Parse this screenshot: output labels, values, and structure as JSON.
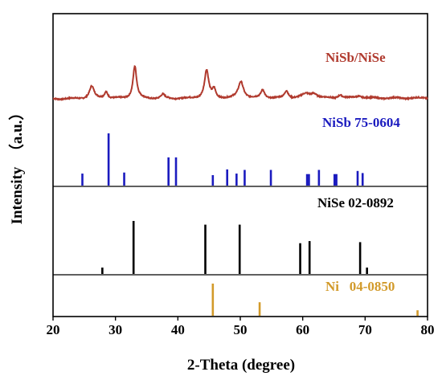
{
  "chart_data": {
    "type": "line",
    "xlabel": "2-Theta (degree)",
    "ylabel": "Intensity  （a.u.）",
    "xlim": [
      20,
      80
    ],
    "xticks": [
      "20",
      "30",
      "40",
      "50",
      "60",
      "70",
      "80"
    ],
    "grid": false,
    "panels": [
      {
        "label": "NiSb/NiSe",
        "color": "#b03a2e",
        "kind": "pattern",
        "peaks": [
          {
            "x": 26.2,
            "h": 0.22,
            "w": 0.45
          },
          {
            "x": 28.5,
            "h": 0.12,
            "w": 0.35
          },
          {
            "x": 33.1,
            "h": 0.58,
            "w": 0.35
          },
          {
            "x": 37.6,
            "h": 0.07,
            "w": 0.35
          },
          {
            "x": 44.6,
            "h": 0.5,
            "w": 0.4
          },
          {
            "x": 45.8,
            "h": 0.15,
            "w": 0.3
          },
          {
            "x": 50.1,
            "h": 0.3,
            "w": 0.5
          },
          {
            "x": 53.6,
            "h": 0.15,
            "w": 0.35
          },
          {
            "x": 57.4,
            "h": 0.13,
            "w": 0.35
          },
          {
            "x": 60.5,
            "h": 0.07,
            "w": 0.8
          },
          {
            "x": 61.8,
            "h": 0.08,
            "w": 0.6
          },
          {
            "x": 66.0,
            "h": 0.06,
            "w": 0.4
          },
          {
            "x": 69.0,
            "h": 0.04,
            "w": 0.6
          }
        ]
      },
      {
        "label": "NiSb 75-0604",
        "color": "#1b1bbf",
        "kind": "sticks",
        "sticks": [
          {
            "x": 24.7,
            "y": 0.23
          },
          {
            "x": 28.9,
            "y": 1.0
          },
          {
            "x": 31.4,
            "y": 0.25
          },
          {
            "x": 38.5,
            "y": 0.54
          },
          {
            "x": 39.7,
            "y": 0.54
          },
          {
            "x": 45.6,
            "y": 0.2
          },
          {
            "x": 47.9,
            "y": 0.31
          },
          {
            "x": 49.4,
            "y": 0.23
          },
          {
            "x": 50.7,
            "y": 0.3
          },
          {
            "x": 54.9,
            "y": 0.3
          },
          {
            "x": 60.7,
            "y": 0.22
          },
          {
            "x": 61.0,
            "y": 0.22
          },
          {
            "x": 62.6,
            "y": 0.3
          },
          {
            "x": 65.1,
            "y": 0.22
          },
          {
            "x": 65.4,
            "y": 0.22
          },
          {
            "x": 68.8,
            "y": 0.28
          },
          {
            "x": 69.6,
            "y": 0.24
          }
        ]
      },
      {
        "label": "NiSe 02-0892",
        "color": "#000000",
        "kind": "sticks",
        "sticks": [
          {
            "x": 27.9,
            "y": 0.12
          },
          {
            "x": 32.9,
            "y": 1.0
          },
          {
            "x": 44.4,
            "y": 0.93
          },
          {
            "x": 49.9,
            "y": 0.93
          },
          {
            "x": 59.6,
            "y": 0.58
          },
          {
            "x": 61.1,
            "y": 0.62
          },
          {
            "x": 69.2,
            "y": 0.6
          },
          {
            "x": 70.3,
            "y": 0.12
          }
        ]
      },
      {
        "label": "Ni   04-0850",
        "color": "#d29a2a",
        "kind": "sticks",
        "sticks": [
          {
            "x": 45.6,
            "y": 1.0
          },
          {
            "x": 53.1,
            "y": 0.42
          },
          {
            "x": 78.4,
            "y": 0.17
          }
        ]
      }
    ]
  }
}
